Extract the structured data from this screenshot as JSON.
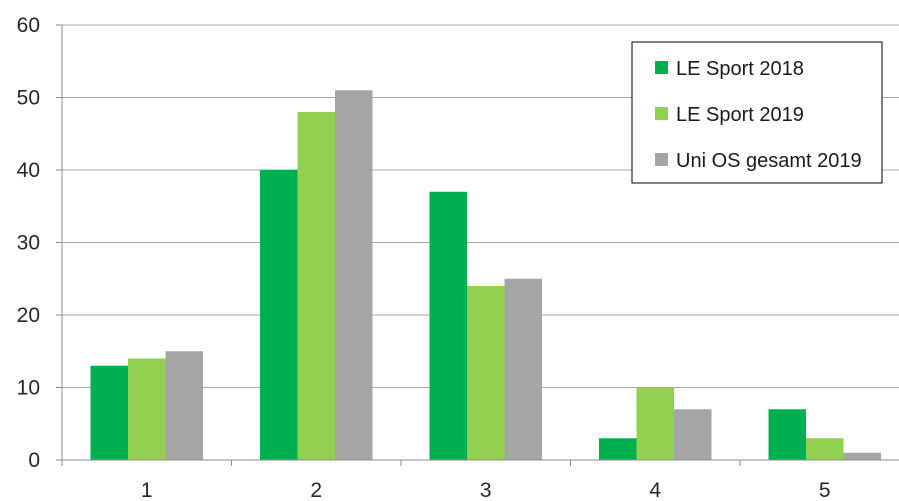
{
  "chart_data": {
    "type": "bar",
    "categories": [
      "1",
      "2",
      "3",
      "4",
      "5"
    ],
    "series": [
      {
        "name": "LE Sport 2018",
        "color": "#00b050",
        "values": [
          13,
          40,
          37,
          3,
          7
        ]
      },
      {
        "name": "LE Sport 2019",
        "color": "#92d050",
        "values": [
          14,
          48,
          24,
          10,
          3
        ]
      },
      {
        "name": "Uni OS gesamt 2019",
        "color": "#a5a5a5",
        "values": [
          15,
          51,
          25,
          7,
          1
        ]
      }
    ],
    "ylim": [
      0,
      60
    ],
    "yticks": [
      "0",
      "10",
      "20",
      "30",
      "40",
      "50",
      "60"
    ],
    "grid": true,
    "legend_position": "top-right"
  }
}
